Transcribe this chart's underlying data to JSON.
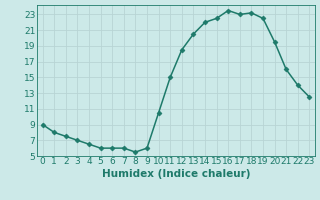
{
  "x": [
    0,
    1,
    2,
    3,
    4,
    5,
    6,
    7,
    8,
    9,
    10,
    11,
    12,
    13,
    14,
    15,
    16,
    17,
    18,
    19,
    20,
    21,
    22,
    23
  ],
  "y": [
    9,
    8,
    7.5,
    7,
    6.5,
    6,
    6,
    6,
    5.5,
    6,
    10.5,
    15,
    18.5,
    20.5,
    22,
    22.5,
    23.5,
    23,
    23.2,
    22.5,
    19.5,
    16,
    14,
    12.5
  ],
  "line_color": "#1e7a6a",
  "marker": "D",
  "marker_size": 2.5,
  "bg_color": "#cce9e8",
  "grid_color": "#b8d4d4",
  "xlabel": "Humidex (Indice chaleur)",
  "xlim": [
    -0.5,
    23.5
  ],
  "ylim": [
    5,
    24.2
  ],
  "yticks": [
    5,
    7,
    9,
    11,
    13,
    15,
    17,
    19,
    21,
    23
  ],
  "xticks": [
    0,
    1,
    2,
    3,
    4,
    5,
    6,
    7,
    8,
    9,
    10,
    11,
    12,
    13,
    14,
    15,
    16,
    17,
    18,
    19,
    20,
    21,
    22,
    23
  ],
  "tick_label_fontsize": 6.5,
  "xlabel_fontsize": 7.5,
  "linewidth": 1.1
}
